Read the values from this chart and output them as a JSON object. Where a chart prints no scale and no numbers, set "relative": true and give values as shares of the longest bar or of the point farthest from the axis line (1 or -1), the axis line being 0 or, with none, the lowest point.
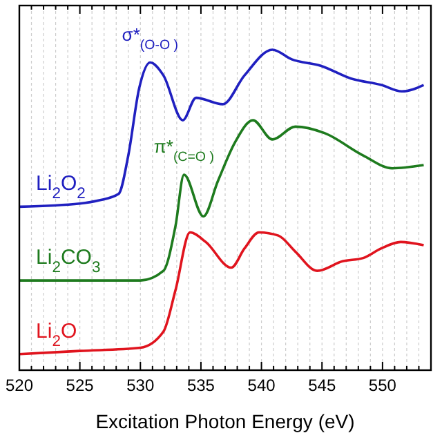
{
  "chart_data": {
    "type": "line",
    "relative": true,
    "xlabel": "Excitation Photon Energy (eV)",
    "xlim": [
      520,
      554
    ],
    "xticks": [
      520,
      {
        "value": 521,
        "label": null
      },
      {
        "value": 522,
        "label": null
      },
      {
        "value": 523,
        "label": null
      },
      {
        "value": 524,
        "label": null
      },
      525,
      {
        "value": 526,
        "label": null
      },
      {
        "value": 527,
        "label": null
      },
      {
        "value": 528,
        "label": null
      },
      {
        "value": 529,
        "label": null
      },
      530,
      {
        "value": 531,
        "label": null
      },
      {
        "value": 532,
        "label": null
      },
      {
        "value": 533,
        "label": null
      },
      {
        "value": 534,
        "label": null
      },
      535,
      {
        "value": 536,
        "label": null
      },
      {
        "value": 537,
        "label": null
      },
      {
        "value": 538,
        "label": null
      },
      {
        "value": 539,
        "label": null
      },
      540,
      {
        "value": 541,
        "label": null
      },
      {
        "value": 542,
        "label": null
      },
      {
        "value": 543,
        "label": null
      },
      {
        "value": 544,
        "label": null
      },
      545,
      {
        "value": 546,
        "label": null
      },
      {
        "value": 547,
        "label": null
      },
      {
        "value": 548,
        "label": null
      },
      {
        "value": 549,
        "label": null
      },
      550,
      {
        "value": 551,
        "label": null
      },
      {
        "value": 552,
        "label": null
      },
      {
        "value": 553,
        "label": null
      }
    ],
    "grid": "x",
    "legend": false,
    "line_style": "solid",
    "marker": "none",
    "series": [
      {
        "name": "Li$_{2}$O$_{2}$",
        "color": "#2020c0",
        "x": [
          520,
          525,
          526.6,
          528.2,
          529,
          529.9,
          530.8,
          531.9,
          533.5,
          534.6,
          536.8,
          538.6,
          540.9,
          542.5,
          544.9,
          547.4,
          549.9,
          551.6,
          553.4
        ],
        "values": [
          0.51,
          0.52,
          0.53,
          0.55,
          0.67,
          0.88,
          0.96,
          0.92,
          0.78,
          0.85,
          0.83,
          0.92,
          1.0,
          0.97,
          0.95,
          0.91,
          0.89,
          0.87,
          0.89
        ]
      },
      {
        "name": "Li$_{2}$CO$_{3}$",
        "color": "#1e7b1e",
        "x": [
          520,
          525,
          530,
          531.9,
          532.9,
          533.6,
          535.2,
          536.4,
          537.8,
          539.3,
          540.9,
          542.8,
          545.2,
          548.4,
          550.8,
          553.4
        ],
        "values": [
          0.28,
          0.28,
          0.28,
          0.31,
          0.45,
          0.61,
          0.48,
          0.59,
          0.71,
          0.78,
          0.72,
          0.76,
          0.74,
          0.67,
          0.63,
          0.64
        ]
      },
      {
        "name": "Li$_{2}$O",
        "color": "#e0141e",
        "x": [
          520,
          525,
          530,
          531.9,
          532.9,
          534.1,
          535.4,
          537.5,
          538.6,
          539.8,
          541.4,
          542.8,
          544.6,
          546.7,
          548.4,
          549.9,
          551.5,
          553.4
        ],
        "values": [
          0.05,
          0.06,
          0.07,
          0.12,
          0.25,
          0.43,
          0.4,
          0.32,
          0.38,
          0.43,
          0.42,
          0.37,
          0.31,
          0.34,
          0.35,
          0.38,
          0.4,
          0.39
        ]
      }
    ],
    "annotations": [
      {
        "text": "σ*$_{(O-O )}$",
        "x": 530.8,
        "y": 0.96
      },
      {
        "text": "π*$_{(C=O )}$",
        "x": 533.6,
        "y": 0.61
      }
    ]
  }
}
